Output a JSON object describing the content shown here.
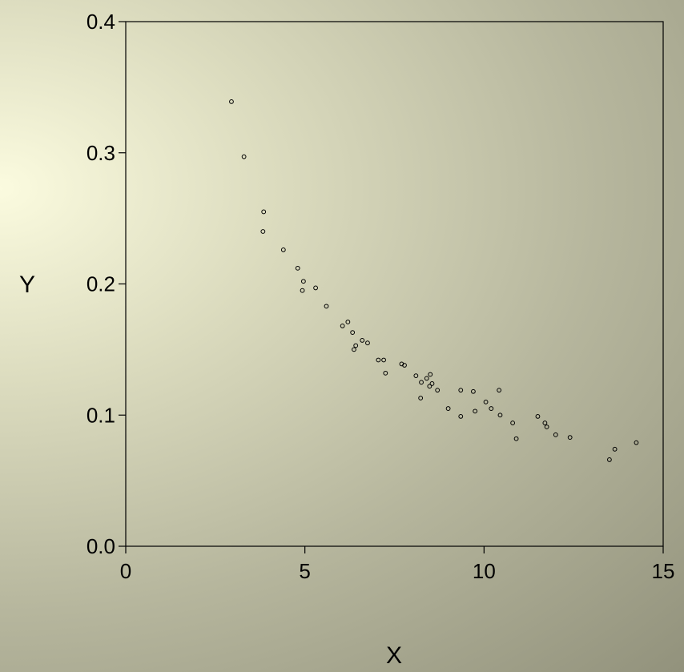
{
  "chart_data": {
    "type": "scatter",
    "title": "",
    "xlabel": "X",
    "ylabel": "Y",
    "xlim": [
      0,
      15
    ],
    "ylim": [
      0,
      0.4
    ],
    "xticks": [
      0,
      5,
      10,
      15
    ],
    "xtick_labels": [
      "0",
      "5",
      "10",
      "15"
    ],
    "yticks": [
      0,
      0.1,
      0.2,
      0.3,
      0.4
    ],
    "ytick_labels": [
      "0.0",
      "0.1",
      "0.2",
      "0.3",
      "0.4"
    ],
    "grid": false,
    "legend": "none",
    "marker": "open-circle",
    "points": [
      {
        "x": 2.95,
        "y": 0.339
      },
      {
        "x": 3.3,
        "y": 0.297
      },
      {
        "x": 3.85,
        "y": 0.255
      },
      {
        "x": 3.83,
        "y": 0.24
      },
      {
        "x": 4.4,
        "y": 0.226
      },
      {
        "x": 4.8,
        "y": 0.212
      },
      {
        "x": 4.96,
        "y": 0.202
      },
      {
        "x": 4.93,
        "y": 0.195
      },
      {
        "x": 5.3,
        "y": 0.197
      },
      {
        "x": 5.6,
        "y": 0.183
      },
      {
        "x": 6.05,
        "y": 0.168
      },
      {
        "x": 6.2,
        "y": 0.171
      },
      {
        "x": 6.33,
        "y": 0.163
      },
      {
        "x": 6.42,
        "y": 0.153
      },
      {
        "x": 6.37,
        "y": 0.15
      },
      {
        "x": 6.6,
        "y": 0.157
      },
      {
        "x": 6.75,
        "y": 0.155
      },
      {
        "x": 7.05,
        "y": 0.142
      },
      {
        "x": 7.2,
        "y": 0.142
      },
      {
        "x": 7.25,
        "y": 0.132
      },
      {
        "x": 7.7,
        "y": 0.139
      },
      {
        "x": 7.78,
        "y": 0.138
      },
      {
        "x": 8.1,
        "y": 0.13
      },
      {
        "x": 8.25,
        "y": 0.125
      },
      {
        "x": 8.4,
        "y": 0.128
      },
      {
        "x": 8.5,
        "y": 0.131
      },
      {
        "x": 8.48,
        "y": 0.122
      },
      {
        "x": 8.55,
        "y": 0.124
      },
      {
        "x": 8.7,
        "y": 0.119
      },
      {
        "x": 8.23,
        "y": 0.113
      },
      {
        "x": 9.0,
        "y": 0.105
      },
      {
        "x": 9.35,
        "y": 0.119
      },
      {
        "x": 9.35,
        "y": 0.099
      },
      {
        "x": 9.7,
        "y": 0.118
      },
      {
        "x": 9.75,
        "y": 0.103
      },
      {
        "x": 10.05,
        "y": 0.11
      },
      {
        "x": 10.2,
        "y": 0.105
      },
      {
        "x": 10.42,
        "y": 0.119
      },
      {
        "x": 10.45,
        "y": 0.1
      },
      {
        "x": 10.8,
        "y": 0.094
      },
      {
        "x": 10.9,
        "y": 0.082
      },
      {
        "x": 11.5,
        "y": 0.099
      },
      {
        "x": 11.7,
        "y": 0.094
      },
      {
        "x": 11.75,
        "y": 0.091
      },
      {
        "x": 12.0,
        "y": 0.085
      },
      {
        "x": 12.4,
        "y": 0.083
      },
      {
        "x": 13.5,
        "y": 0.066
      },
      {
        "x": 13.65,
        "y": 0.074
      },
      {
        "x": 14.25,
        "y": 0.079
      }
    ]
  }
}
